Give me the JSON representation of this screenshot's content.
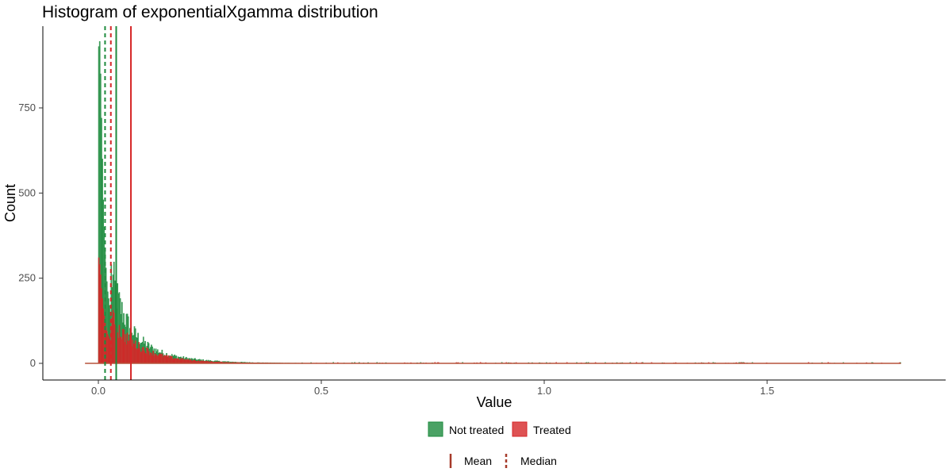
{
  "chart_data": {
    "type": "histogram",
    "title": "Histogram of exponentialXgamma distribution",
    "xlabel": "Value",
    "ylabel": "Count",
    "xlim": [
      -0.05,
      1.82
    ],
    "ylim": [
      -40,
      990
    ],
    "x_ticks": [
      0.0,
      0.5,
      1.0,
      1.5
    ],
    "x_tick_labels": [
      "0.0",
      "0.5",
      "1.0",
      "1.5"
    ],
    "y_ticks": [
      0,
      250,
      500,
      750
    ],
    "y_tick_labels": [
      "0",
      "250",
      "500",
      "750"
    ],
    "grid": false,
    "bin_width": 0.002,
    "data_range": [
      -0.03,
      1.8
    ],
    "series": [
      {
        "name": "Not treated",
        "color": "#1e8b3e",
        "fill_opacity": 0.8,
        "peak_counts": [
          930,
          945,
          850,
          720,
          600,
          480,
          400,
          330,
          280,
          240,
          210,
          190,
          170,
          150
        ],
        "decay_scale": 0.03,
        "tail_count_at_0.15": 25,
        "mean": 0.04,
        "median": 0.015
      },
      {
        "name": "Treated",
        "color": "#d62728",
        "fill_opacity": 0.8,
        "peak_counts": [
          310,
          290,
          260,
          220,
          190,
          160,
          140,
          120,
          105,
          95,
          85,
          78,
          72,
          66
        ],
        "decay_scale": 0.05,
        "tail_count_at_0.15": 14,
        "mean": 0.073,
        "median": 0.028
      }
    ],
    "legend": {
      "position": "bottom",
      "fill_items": [
        {
          "label": "Not treated",
          "color": "#1e8b3e"
        },
        {
          "label": "Treated",
          "color": "#d62728"
        }
      ],
      "line_items": [
        {
          "label": "Mean",
          "style": "solid"
        },
        {
          "label": "Median",
          "style": "dashed"
        }
      ],
      "line_legend_color": "#a63a2a"
    }
  }
}
